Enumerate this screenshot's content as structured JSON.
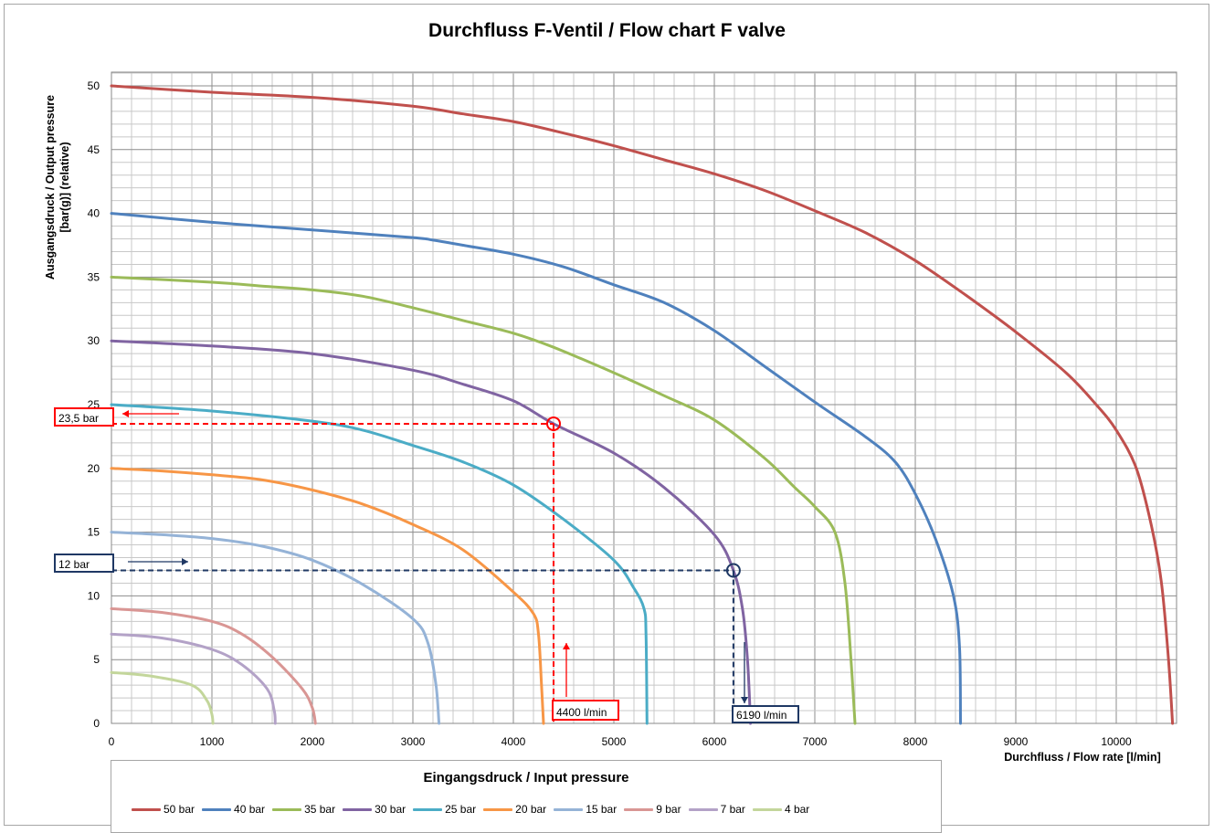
{
  "chart_data": {
    "type": "line",
    "title": "Durchfluss F-Ventil / Flow chart F valve",
    "xlabel": "Durchfluss  / Flow rate  [l/min]",
    "ylabel_line1": "Ausgangsdruck  / Output pressure",
    "ylabel_line2": "[bar(g)]  (relative)",
    "xlim": [
      0,
      10600
    ],
    "ylim": [
      0,
      50
    ],
    "x_ticks": [
      "0",
      "1000",
      "2000",
      "3000",
      "4000",
      "5000",
      "6000",
      "7000",
      "8000",
      "9000",
      "10000"
    ],
    "y_ticks": [
      "0",
      "5",
      "10",
      "15",
      "20",
      "25",
      "30",
      "35",
      "40",
      "45",
      "50"
    ],
    "grid": true,
    "legend_title": "Eingangsdruck / Input pressure",
    "legend_position": "bottom",
    "series": [
      {
        "name": "50 bar",
        "color": "#c0504d",
        "points": [
          [
            0,
            50
          ],
          [
            1000,
            49.5
          ],
          [
            2000,
            49.1
          ],
          [
            3000,
            48.4
          ],
          [
            3500,
            47.8
          ],
          [
            4000,
            47.2
          ],
          [
            4500,
            46.3
          ],
          [
            5000,
            45.3
          ],
          [
            5500,
            44.2
          ],
          [
            6000,
            43.1
          ],
          [
            6500,
            41.8
          ],
          [
            7000,
            40.2
          ],
          [
            7500,
            38.5
          ],
          [
            8000,
            36.3
          ],
          [
            8500,
            33.6
          ],
          [
            9000,
            30.7
          ],
          [
            9500,
            27.5
          ],
          [
            9800,
            25
          ],
          [
            10000,
            23
          ],
          [
            10200,
            20
          ],
          [
            10350,
            15.5
          ],
          [
            10450,
            11
          ],
          [
            10520,
            5
          ],
          [
            10560,
            0
          ]
        ]
      },
      {
        "name": "40 bar",
        "color": "#4f81bd",
        "points": [
          [
            0,
            40
          ],
          [
            1000,
            39.3
          ],
          [
            2000,
            38.7
          ],
          [
            3000,
            38.1
          ],
          [
            3200,
            37.9
          ],
          [
            3500,
            37.5
          ],
          [
            4000,
            36.8
          ],
          [
            4500,
            35.8
          ],
          [
            5000,
            34.4
          ],
          [
            5500,
            33
          ],
          [
            6000,
            30.8
          ],
          [
            6500,
            28
          ],
          [
            7000,
            25.2
          ],
          [
            7500,
            22.5
          ],
          [
            7800,
            20.5
          ],
          [
            8000,
            18
          ],
          [
            8200,
            14.5
          ],
          [
            8380,
            10
          ],
          [
            8440,
            6
          ],
          [
            8450,
            0
          ]
        ]
      },
      {
        "name": "35 bar",
        "color": "#9bbb59",
        "points": [
          [
            0,
            35
          ],
          [
            1000,
            34.6
          ],
          [
            1500,
            34.3
          ],
          [
            2000,
            34
          ],
          [
            2500,
            33.5
          ],
          [
            3000,
            32.6
          ],
          [
            3500,
            31.6
          ],
          [
            4000,
            30.6
          ],
          [
            4400,
            29.5
          ],
          [
            5000,
            27.5
          ],
          [
            5500,
            25.7
          ],
          [
            6000,
            23.8
          ],
          [
            6500,
            20.8
          ],
          [
            6800,
            18.5
          ],
          [
            7000,
            17
          ],
          [
            7200,
            15
          ],
          [
            7300,
            11
          ],
          [
            7360,
            5
          ],
          [
            7400,
            0
          ]
        ]
      },
      {
        "name": "30 bar",
        "color": "#8064a2",
        "points": [
          [
            0,
            30
          ],
          [
            1000,
            29.6
          ],
          [
            2000,
            29
          ],
          [
            3000,
            27.7
          ],
          [
            3500,
            26.6
          ],
          [
            4000,
            25.3
          ],
          [
            4400,
            23.5
          ],
          [
            5000,
            21.2
          ],
          [
            5500,
            18.5
          ],
          [
            6000,
            14.8
          ],
          [
            6190,
            12
          ],
          [
            6280,
            9
          ],
          [
            6330,
            5
          ],
          [
            6360,
            0
          ]
        ]
      },
      {
        "name": "25 bar",
        "color": "#4bacc6",
        "points": [
          [
            0,
            25
          ],
          [
            1000,
            24.5
          ],
          [
            2000,
            23.7
          ],
          [
            2500,
            23
          ],
          [
            3000,
            21.8
          ],
          [
            3500,
            20.5
          ],
          [
            4000,
            18.7
          ],
          [
            4500,
            16
          ],
          [
            5000,
            12.8
          ],
          [
            5200,
            10.6
          ],
          [
            5300,
            9
          ],
          [
            5320,
            7
          ],
          [
            5330,
            0
          ]
        ]
      },
      {
        "name": "20 bar",
        "color": "#f79646",
        "points": [
          [
            0,
            20
          ],
          [
            500,
            19.8
          ],
          [
            1000,
            19.5
          ],
          [
            1500,
            19.1
          ],
          [
            2000,
            18.3
          ],
          [
            2500,
            17.2
          ],
          [
            3000,
            15.6
          ],
          [
            3500,
            13.6
          ],
          [
            4000,
            10.3
          ],
          [
            4200,
            8.6
          ],
          [
            4250,
            7
          ],
          [
            4280,
            3
          ],
          [
            4300,
            0
          ]
        ]
      },
      {
        "name": "15 bar",
        "color": "#95b3d7",
        "points": [
          [
            0,
            15
          ],
          [
            500,
            14.8
          ],
          [
            1000,
            14.5
          ],
          [
            1500,
            13.9
          ],
          [
            2000,
            12.8
          ],
          [
            2500,
            10.9
          ],
          [
            3000,
            8.2
          ],
          [
            3150,
            6.3
          ],
          [
            3230,
            3
          ],
          [
            3260,
            0
          ]
        ]
      },
      {
        "name": "9 bar",
        "color": "#d99694",
        "points": [
          [
            0,
            9
          ],
          [
            500,
            8.7
          ],
          [
            1000,
            8
          ],
          [
            1300,
            7
          ],
          [
            1600,
            5.2
          ],
          [
            1900,
            2.7
          ],
          [
            2000,
            1.2
          ],
          [
            2030,
            0
          ]
        ]
      },
      {
        "name": "7 bar",
        "color": "#b3a2c7",
        "points": [
          [
            0,
            7
          ],
          [
            500,
            6.7
          ],
          [
            1000,
            5.8
          ],
          [
            1300,
            4.6
          ],
          [
            1550,
            2.7
          ],
          [
            1620,
            1
          ],
          [
            1630,
            0
          ]
        ]
      },
      {
        "name": "4 bar",
        "color": "#c3d69b",
        "points": [
          [
            0,
            4
          ],
          [
            400,
            3.7
          ],
          [
            800,
            3
          ],
          [
            950,
            1.8
          ],
          [
            1000,
            0.7
          ],
          [
            1010,
            0
          ]
        ]
      }
    ],
    "annotations": {
      "red_point": [
        4400,
        23.5
      ],
      "red_y_label": "23,5 bar",
      "red_x_label": "4400 l/min",
      "blue_point": [
        6190,
        12
      ],
      "blue_y_label": "12 bar",
      "blue_x_label": "6190 l/min",
      "red_color": "#ff0000",
      "blue_color": "#1f3864"
    }
  }
}
